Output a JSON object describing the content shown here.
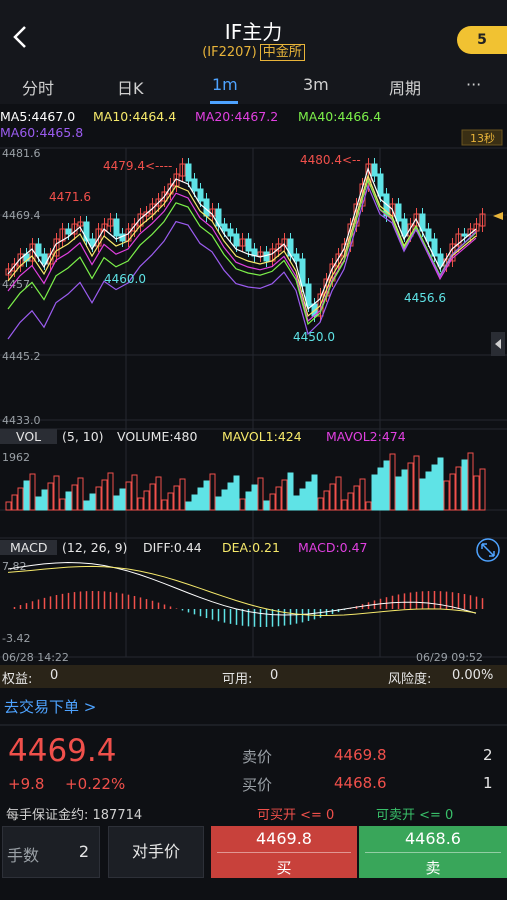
{
  "header": {
    "back_icon": "chevron-left-icon",
    "title": "IF主力",
    "code": "(IF2207)",
    "exchange": "中金所",
    "badge": "5"
  },
  "tabs": [
    "分时",
    "日K",
    "1m",
    "3m",
    "周期",
    "···"
  ],
  "active_tab": "1m",
  "chart_data": [
    {
      "type": "candlestick",
      "indicators": {
        "MA5": "MA5:4467.0",
        "MA10": "MA10:4464.4",
        "MA20": "MA20:4467.2",
        "MA40": "MA40:4466.4",
        "MA60": "MA60:4465.8"
      },
      "y_ticks": [
        "4481.6",
        "4469.4",
        "4457.",
        "4445.2",
        "4433.0"
      ],
      "ylim": [
        4433.0,
        4481.6
      ],
      "countdown": "13秒",
      "annotations": [
        "4479.4<----",
        "4471.6",
        "4460.0",
        "4450.0",
        "4480.4<--",
        "4456.6"
      ],
      "colors": {
        "up": "#f0504b",
        "down": "#5fe3e6",
        "ma5": "#ffffff",
        "ma10": "#f6e96b",
        "ma20": "#e040e0",
        "ma40": "#7cf04a",
        "ma60": "#9b5cf0"
      }
    },
    {
      "type": "bar",
      "name": "VOL",
      "params": "(5, 10)",
      "volume": "VOLUME:480",
      "mavol1": "MAVOL1:424",
      "mavol2": "MAVOL2:474",
      "y_ticks": [
        "1962"
      ]
    },
    {
      "type": "bar",
      "name": "MACD",
      "params": "(12, 26, 9)",
      "diff": "DIFF:0.44",
      "dea": "DEA:0.21",
      "macd": "MACD:0.47",
      "y_ticks": [
        "7.82",
        "-3.42"
      ],
      "x_start": "06/28 14:22",
      "x_end": "06/29 09:52"
    }
  ],
  "account": {
    "equity_label": "权益:",
    "equity": "0",
    "available_label": "可用:",
    "available": "0",
    "risk_label": "风险度:",
    "risk": "0.00%"
  },
  "trade_link": "去交易下单 >",
  "quote": {
    "last": "4469.4",
    "change": "+9.8",
    "change_pct": "+0.22%",
    "ask_label": "卖价",
    "ask": "4469.8",
    "ask_vol": "2",
    "bid_label": "买价",
    "bid": "4468.6",
    "bid_vol": "1"
  },
  "margin_text": "每手保证金约: 187714",
  "can_open_long": "可买开 <= 0",
  "can_open_short": "可卖开 <= 0",
  "order": {
    "lots_label": "手数",
    "lots": "2",
    "opp_price": "对手价",
    "buy_price": "4469.8",
    "buy_label": "买",
    "sell_price": "4468.6",
    "sell_label": "卖"
  }
}
